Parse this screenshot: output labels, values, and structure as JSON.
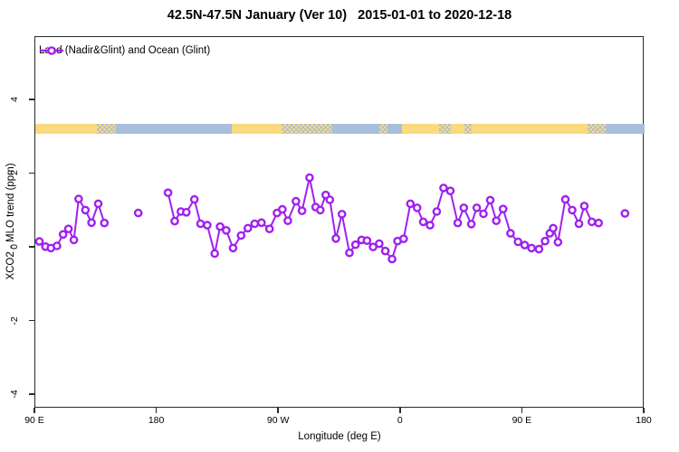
{
  "title": "42.5N-47.5N January (Ver 10)   2015-01-01 to 2020-12-18",
  "legend": {
    "label": "Land (Nadir&Glint) and Ocean (Glint)"
  },
  "axes": {
    "x": {
      "label": "Longitude (deg E)",
      "ticks": [
        {
          "value": 90,
          "label": "90 E"
        },
        {
          "value": 180,
          "label": "180"
        },
        {
          "value": 270,
          "label": "90 W"
        },
        {
          "value": 360,
          "label": "0"
        },
        {
          "value": 450,
          "label": "90 E"
        },
        {
          "value": 540,
          "label": "180"
        }
      ]
    },
    "y": {
      "label": "XCO2 - MLO trend (ppm)",
      "ticks": [
        {
          "value": -4,
          "label": "-4"
        },
        {
          "value": -2,
          "label": "-2"
        },
        {
          "value": 0,
          "label": "0"
        },
        {
          "value": 2,
          "label": "2"
        },
        {
          "value": 4,
          "label": "4"
        }
      ]
    }
  },
  "colors": {
    "series": "#A020F0",
    "land": "#FBD97E",
    "ocean": "#A8BEDC",
    "axis": "#2b2b2b"
  },
  "chart_data": {
    "type": "line",
    "title": "42.5N-47.5N January (Ver 10)   2015-01-01 to 2020-12-18",
    "xlabel": "Longitude (deg E)",
    "ylabel": "XCO2 - MLO trend (ppm)",
    "xlim": [
      90,
      540
    ],
    "ylim": [
      -4.4,
      5.7
    ],
    "grid": false,
    "legend_position": "top-left-inside",
    "x_axis_note": "longitude wraps: 90E,180,90W,0,90E,180 (axis units 90..540 deg E)",
    "series": [
      {
        "name": "Land (Nadir&Glint) and Ocean (Glint)",
        "color": "#A020F0",
        "marker": "open-circle",
        "segments": [
          [
            [
              93,
              0.17
            ],
            [
              97.5,
              0.03
            ],
            [
              101.5,
              -0.01
            ],
            [
              106,
              0.05
            ],
            [
              110.5,
              0.36
            ],
            [
              114.5,
              0.51
            ],
            [
              118.5,
              0.21
            ],
            [
              122,
              1.32
            ],
            [
              127,
              1.02
            ],
            [
              131.5,
              0.68
            ],
            [
              136.5,
              1.19
            ],
            [
              141,
              0.67
            ]
          ],
          [
            [
              166,
              0.94
            ]
          ],
          [
            [
              188,
              1.49
            ],
            [
              193,
              0.72
            ],
            [
              197.5,
              0.98
            ],
            [
              201.5,
              0.96
            ],
            [
              207.5,
              1.31
            ],
            [
              212,
              0.65
            ],
            [
              217,
              0.61
            ],
            [
              222.5,
              -0.16
            ],
            [
              226.5,
              0.57
            ],
            [
              231,
              0.47
            ],
            [
              236,
              -0.01
            ],
            [
              242,
              0.33
            ],
            [
              247,
              0.53
            ],
            [
              252,
              0.65
            ],
            [
              257,
              0.68
            ],
            [
              263,
              0.51
            ],
            [
              268.5,
              0.94
            ],
            [
              272.5,
              1.04
            ],
            [
              276.5,
              0.73
            ],
            [
              282.5,
              1.26
            ],
            [
              287,
              1.0
            ],
            [
              292.5,
              1.9
            ],
            [
              297,
              1.1
            ],
            [
              300.5,
              1.02
            ],
            [
              304.5,
              1.43
            ],
            [
              307.5,
              1.3
            ],
            [
              312,
              0.25
            ],
            [
              316.5,
              0.91
            ],
            [
              322,
              -0.14
            ],
            [
              326.5,
              0.08
            ],
            [
              331,
              0.21
            ],
            [
              335,
              0.19
            ],
            [
              339.5,
              0.02
            ],
            [
              344,
              0.11
            ],
            [
              348.5,
              -0.09
            ],
            [
              353.5,
              -0.31
            ],
            [
              357.5,
              0.18
            ],
            [
              362,
              0.24
            ],
            [
              367,
              1.19
            ],
            [
              372,
              1.08
            ],
            [
              376.5,
              0.7
            ],
            [
              381.5,
              0.61
            ],
            [
              386.5,
              0.98
            ],
            [
              391.5,
              1.62
            ],
            [
              396.5,
              1.54
            ],
            [
              402,
              0.67
            ],
            [
              406.5,
              1.08
            ],
            [
              412,
              0.64
            ],
            [
              416,
              1.08
            ],
            [
              421,
              0.92
            ],
            [
              426,
              1.29
            ],
            [
              430.5,
              0.73
            ],
            [
              435.5,
              1.05
            ],
            [
              441,
              0.39
            ],
            [
              446.5,
              0.16
            ],
            [
              451.5,
              0.07
            ],
            [
              456.5,
              -0.01
            ],
            [
              462,
              -0.04
            ],
            [
              466.5,
              0.18
            ],
            [
              470,
              0.39
            ],
            [
              472.5,
              0.53
            ],
            [
              476,
              0.15
            ],
            [
              481.5,
              1.31
            ],
            [
              486.5,
              1.02
            ],
            [
              491.5,
              0.65
            ],
            [
              495.5,
              1.13
            ],
            [
              501,
              0.7
            ],
            [
              506,
              0.67
            ]
          ],
          [
            [
              525.5,
              0.93
            ]
          ]
        ]
      }
    ],
    "map_strip": {
      "description": "land/ocean band drawn at ~3.05-3.35 ppm",
      "value_range": [
        3.05,
        3.35
      ],
      "land_color": "#FBD97E",
      "ocean_color": "#A8BEDC",
      "segments": [
        {
          "from": 90,
          "to": 135.5,
          "type": "land"
        },
        {
          "from": 135.5,
          "to": 149.5,
          "type": "coast"
        },
        {
          "from": 149.5,
          "to": 235,
          "type": "ocean"
        },
        {
          "from": 235,
          "to": 272,
          "type": "land"
        },
        {
          "from": 272,
          "to": 309,
          "type": "coast"
        },
        {
          "from": 309,
          "to": 344,
          "type": "ocean"
        },
        {
          "from": 344,
          "to": 350,
          "type": "coast"
        },
        {
          "from": 350,
          "to": 361,
          "type": "ocean"
        },
        {
          "from": 361,
          "to": 388,
          "type": "land"
        },
        {
          "from": 388,
          "to": 397,
          "type": "coast"
        },
        {
          "from": 397,
          "to": 407,
          "type": "land"
        },
        {
          "from": 407,
          "to": 412.5,
          "type": "coast"
        },
        {
          "from": 412.5,
          "to": 498,
          "type": "land"
        },
        {
          "from": 498,
          "to": 511,
          "type": "coast"
        },
        {
          "from": 511,
          "to": 540,
          "type": "ocean"
        }
      ]
    }
  }
}
